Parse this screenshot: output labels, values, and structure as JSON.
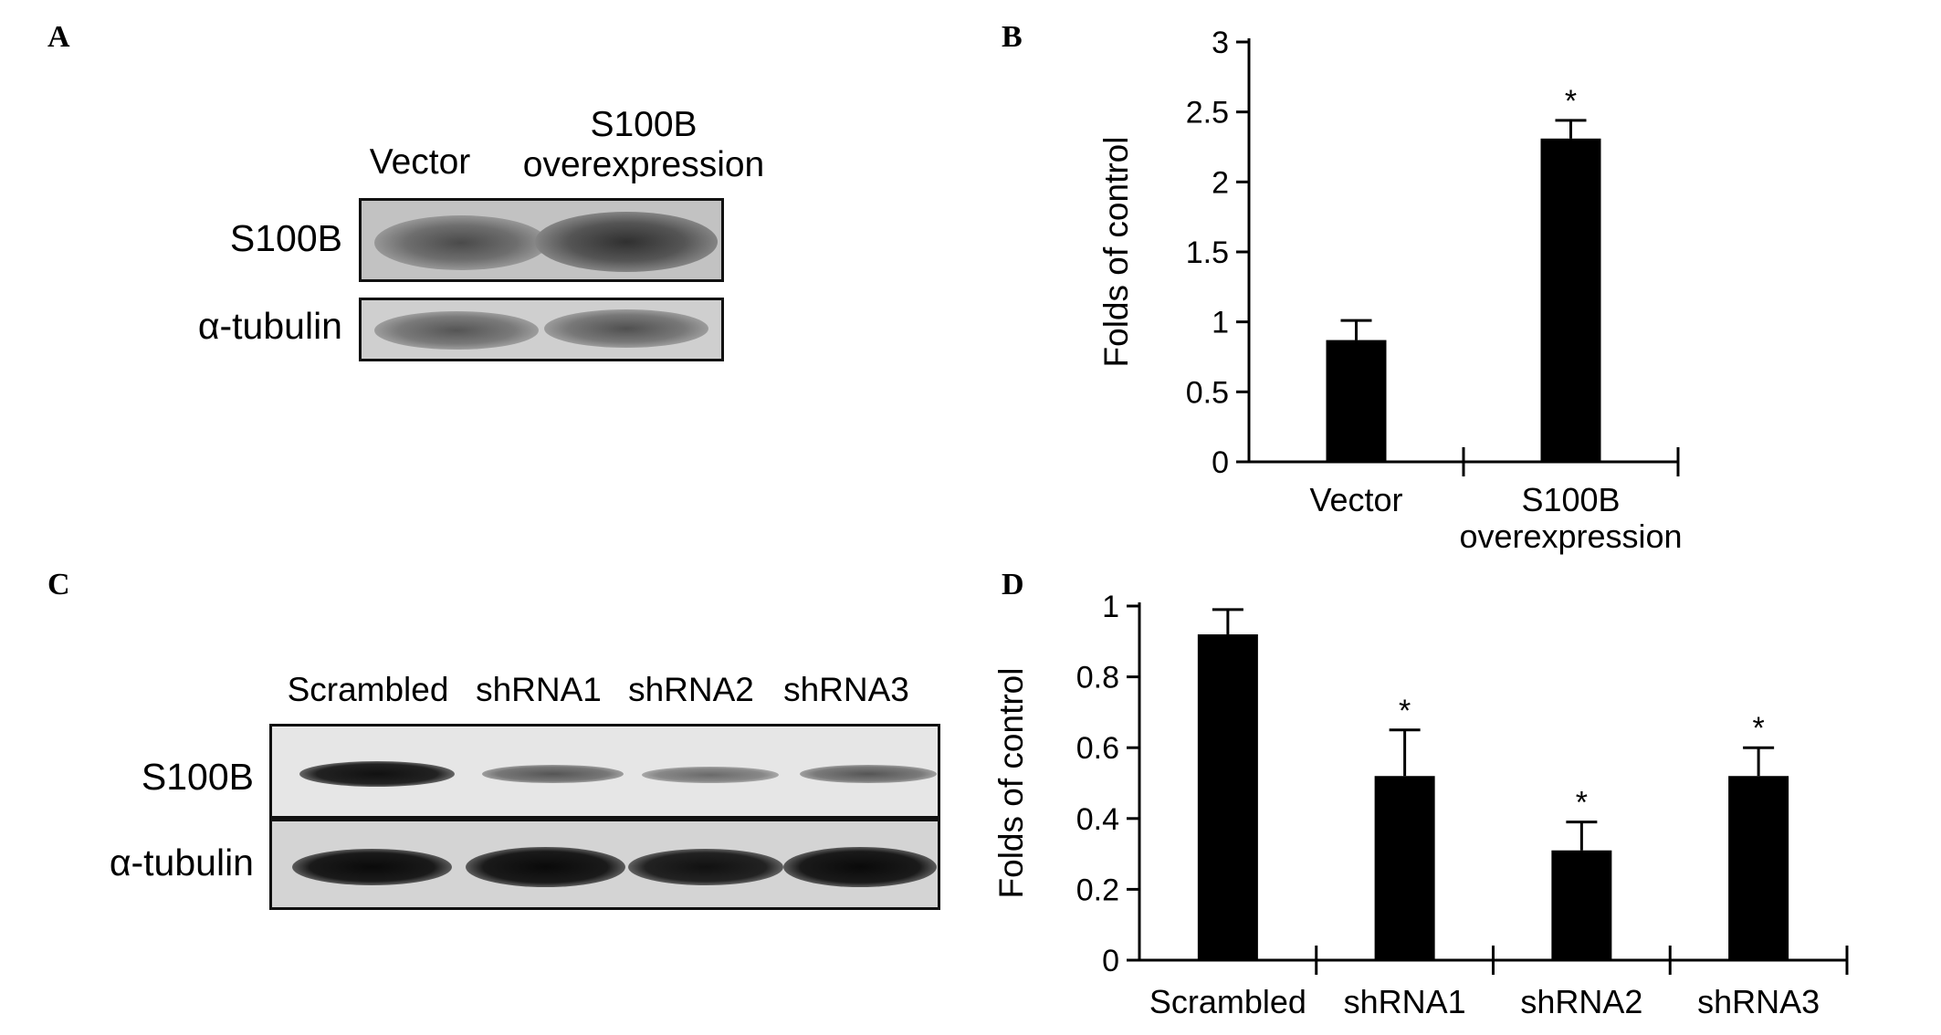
{
  "panels": {
    "A": {
      "letter": "A",
      "lanes": [
        "Vector",
        "S100B\noverexpression"
      ],
      "rows": [
        "S100B",
        "α-tubulin"
      ]
    },
    "B": {
      "letter": "B"
    },
    "C": {
      "letter": "C",
      "lanes": [
        "Scrambled",
        "shRNA1",
        "shRNA2",
        "shRNA3"
      ],
      "rows": [
        "S100B",
        "α-tubulin"
      ]
    },
    "D": {
      "letter": "D"
    }
  },
  "chart_data": [
    {
      "panel": "B",
      "type": "bar",
      "categories": [
        "Vector",
        "S100B\noverexpression"
      ],
      "series": [
        {
          "values": [
            0.87,
            2.31
          ],
          "errors": [
            0.14,
            0.13
          ]
        }
      ],
      "significance": [
        "",
        "*"
      ],
      "ylabel": "Folds of control",
      "xlabel": "",
      "ylim": [
        0,
        3
      ],
      "yticks": [
        "0",
        "0.5",
        "1",
        "1.5",
        "2",
        "2.5",
        "3"
      ],
      "bar_color": "#000000",
      "grid": false
    },
    {
      "panel": "D",
      "type": "bar",
      "categories": [
        "Scrambled",
        "shRNA1",
        "shRNA2",
        "shRNA3"
      ],
      "series": [
        {
          "values": [
            0.92,
            0.52,
            0.31,
            0.52
          ],
          "errors": [
            0.07,
            0.13,
            0.08,
            0.08
          ]
        }
      ],
      "significance": [
        "",
        "*",
        "*",
        "*"
      ],
      "ylabel": "Folds of control",
      "xlabel": "",
      "ylim": [
        0,
        1
      ],
      "yticks": [
        "0",
        "0.2",
        "0.4",
        "0.6",
        "0.8",
        "1"
      ],
      "bar_color": "#000000",
      "grid": false
    }
  ]
}
